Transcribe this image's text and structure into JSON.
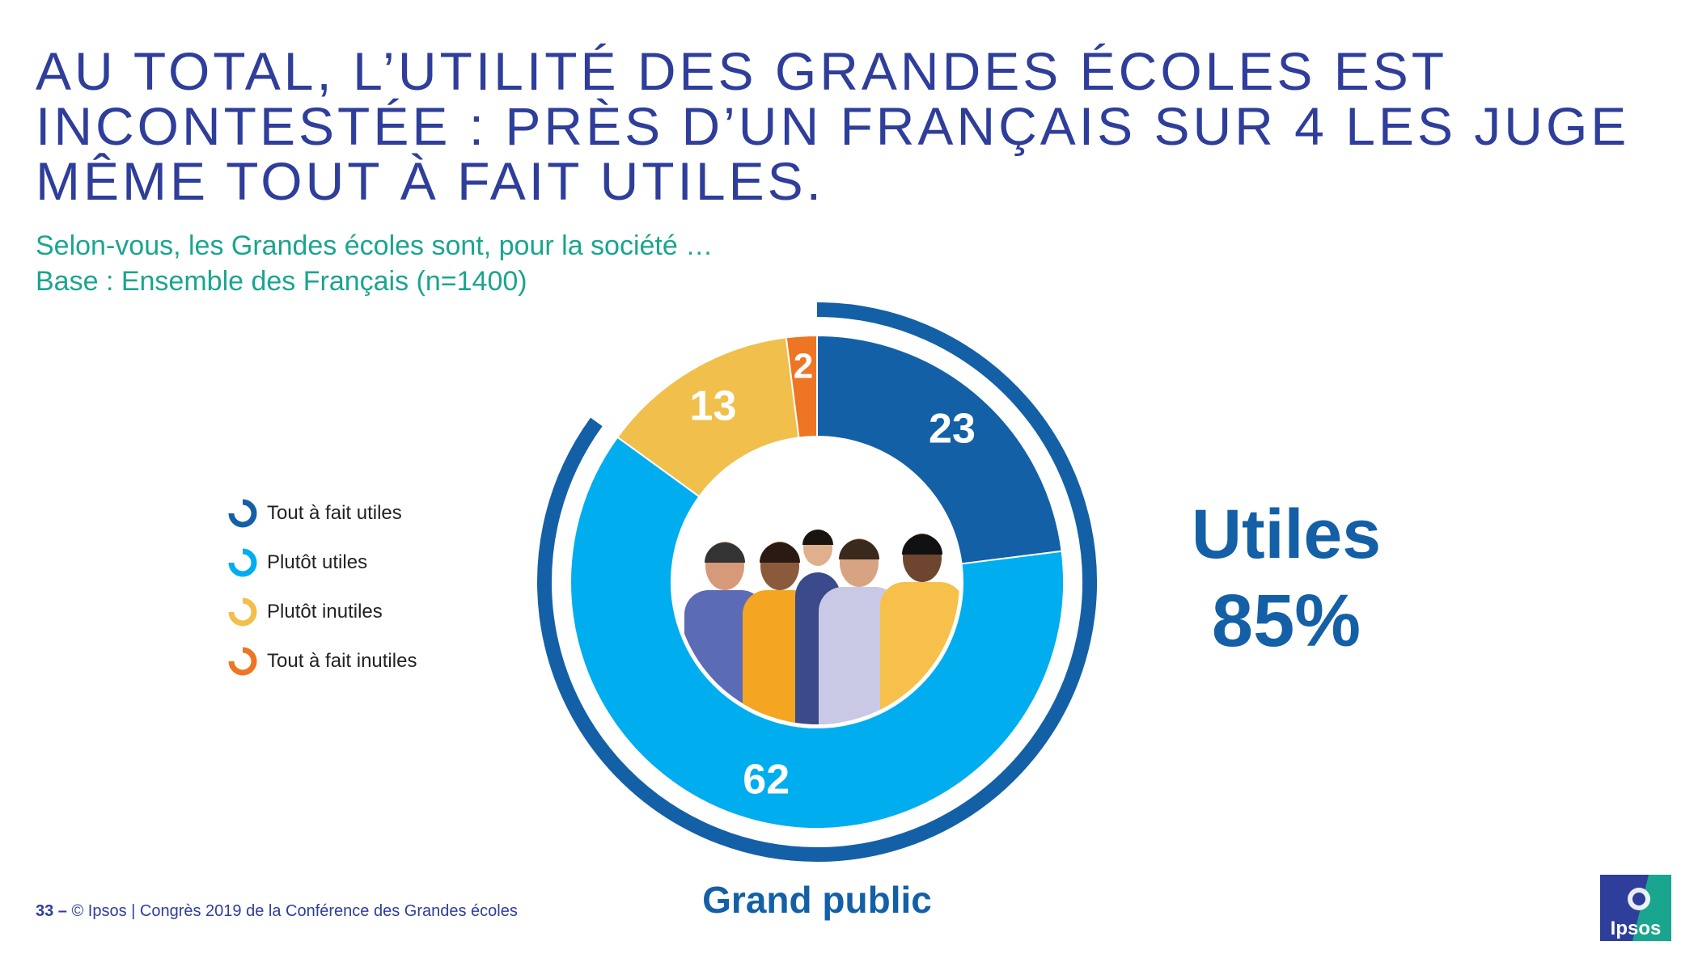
{
  "title": "AU TOTAL, L’UTILITÉ DES GRANDES ÉCOLES EST INCONTESTÉE : PRÈS D’UN FRANÇAIS SUR 4 LES JUGE MÊME TOUT À FAIT UTILES.",
  "subtitle": {
    "question": "Selon-vous, les Grandes écoles sont, pour la société …",
    "base": "Base : Ensemble des Français (n=1400)"
  },
  "chart_data": {
    "type": "pie",
    "variant": "donut",
    "categories": [
      "Tout à fait utiles",
      "Plutôt utiles",
      "Plutôt inutiles",
      "Tout à fait inutiles"
    ],
    "values": [
      23,
      62,
      13,
      2
    ],
    "colors": [
      "#1460a7",
      "#00adef",
      "#f1bf4c",
      "#ee7523"
    ],
    "legend_position": "left",
    "caption": "Grand public",
    "aggregate": {
      "label": "Utiles",
      "value": "85%",
      "covers": [
        "Tout à fait utiles",
        "Plutôt utiles"
      ]
    }
  },
  "footer": {
    "page": "33 –",
    "text": "© Ipsos | Congrès 2019 de la Conférence des Grandes écoles"
  },
  "logo": {
    "text": "Ipsos",
    "colors": [
      "#1aa58f",
      "#2e3e9a"
    ]
  }
}
